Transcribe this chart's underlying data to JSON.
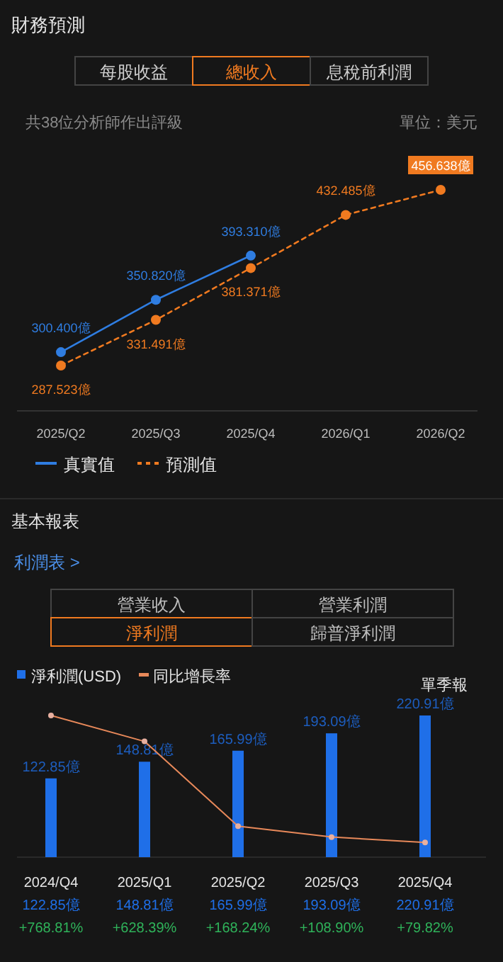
{
  "chart_data": [
    {
      "type": "line",
      "title": "財務預測",
      "annotations": [
        "每股收益",
        "總收入",
        "息稅前利潤",
        "共38位分析師作出評級",
        "單位：美元"
      ],
      "categories": [
        "2025/Q2",
        "2025/Q3",
        "2025/Q4",
        "2026/Q1",
        "2026/Q2"
      ],
      "series": [
        {
          "name": "真實值",
          "color": "#2f7de1",
          "line_style": "solid",
          "values": [
            300.4,
            350.82,
            393.31,
            null,
            null
          ],
          "value_labels": [
            "300.400億",
            "350.820億",
            "393.310億",
            null,
            null
          ]
        },
        {
          "name": "預測值",
          "color": "#f07a20",
          "line_style": "dashed",
          "values": [
            287.523,
            331.491,
            381.371,
            432.485,
            456.638
          ],
          "value_labels": [
            "287.523億",
            "331.491億",
            "381.371億",
            "432.485億",
            "456.638億"
          ]
        }
      ],
      "marker": "circle",
      "legend": "bottom",
      "grid": false
    },
    {
      "type": "bar",
      "title": "基本報表",
      "annotations": [
        "利潤表 >",
        "營業收入",
        "營業利潤",
        "淨利潤",
        "歸普淨利潤",
        "單季報"
      ],
      "categories": [
        "2024/Q4",
        "2025/Q1",
        "2025/Q2",
        "2025/Q3",
        "2025/Q4"
      ],
      "series": [
        {
          "name": "淨利潤(USD)",
          "type": "bar",
          "color": "#1f6fe8",
          "values": [
            122.85,
            148.81,
            165.99,
            193.09,
            220.91
          ],
          "value_labels": [
            "122.85億",
            "148.81億",
            "165.99億",
            "193.09億",
            "220.91億"
          ]
        },
        {
          "name": "同比增長率",
          "type": "line",
          "axis": "y2",
          "color": "#e8895a",
          "marker": "circle",
          "values": [
            768.81,
            628.39,
            168.24,
            108.9,
            79.82
          ],
          "value_labels": [
            "+768.81%",
            "+628.39%",
            "+168.24%",
            "+108.90%",
            "+79.82%"
          ]
        }
      ],
      "legend": "top left"
    }
  ]
}
